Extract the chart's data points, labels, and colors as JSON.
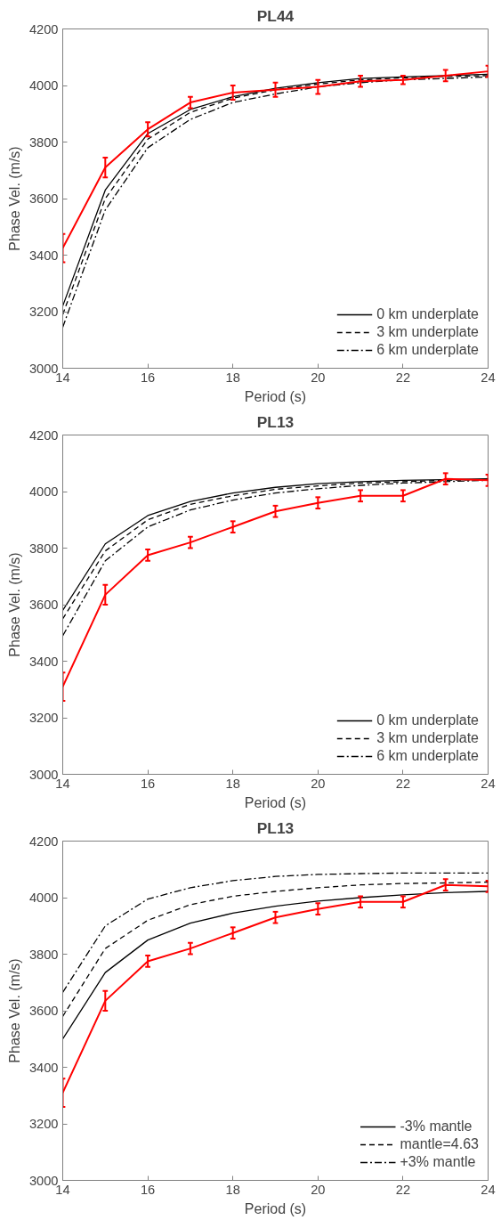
{
  "chart_data": [
    {
      "type": "line",
      "title": "PL44",
      "xlabel": "Period (s)",
      "ylabel": "Phase Vel. (m/s)",
      "x": [
        14,
        15,
        16,
        17,
        18,
        19,
        20,
        21,
        22,
        23,
        24
      ],
      "xlim": [
        14,
        24
      ],
      "xticks": [
        14,
        16,
        18,
        20,
        22,
        24
      ],
      "ylim": [
        3000,
        4200
      ],
      "yticks": [
        3000,
        3200,
        3400,
        3600,
        3800,
        4000,
        4200
      ],
      "grid": false,
      "legend": "bottom right",
      "series": [
        {
          "name": "0 km underplate",
          "color": "#000000",
          "line_style": "solid",
          "values": [
            3220,
            3630,
            3830,
            3915,
            3960,
            3990,
            4010,
            4025,
            4030,
            4035,
            4040
          ]
        },
        {
          "name": "3 km underplate",
          "color": "#000000",
          "line_style": "dashed",
          "values": [
            3190,
            3600,
            3810,
            3905,
            3955,
            3985,
            4005,
            4020,
            4027,
            4032,
            4035
          ]
        },
        {
          "name": "6 km underplate",
          "color": "#000000",
          "line_style": "dashdot",
          "values": [
            3145,
            3560,
            3780,
            3880,
            3940,
            3970,
            3995,
            4010,
            4020,
            4025,
            4030
          ]
        },
        {
          "color": "#ff0000",
          "line_style": "solid",
          "values": [
            3425,
            3710,
            3845,
            3940,
            3975,
            3985,
            3995,
            4015,
            4020,
            4035,
            4050
          ],
          "errors": [
            50,
            35,
            25,
            20,
            25,
            25,
            25,
            20,
            15,
            20,
            20
          ]
        }
      ]
    },
    {
      "type": "line",
      "title": "PL13",
      "xlabel": "Period (s)",
      "ylabel": "Phase Vel. (m/s)",
      "x": [
        14,
        15,
        16,
        17,
        18,
        19,
        20,
        21,
        22,
        23,
        24
      ],
      "xlim": [
        14,
        24
      ],
      "xticks": [
        14,
        16,
        18,
        20,
        22,
        24
      ],
      "ylim": [
        3000,
        4200
      ],
      "yticks": [
        3000,
        3200,
        3400,
        3600,
        3800,
        4000,
        4200
      ],
      "grid": false,
      "legend": "bottom right",
      "series": [
        {
          "name": "0 km underplate",
          "color": "#000000",
          "line_style": "solid",
          "values": [
            3580,
            3815,
            3915,
            3965,
            3995,
            4015,
            4028,
            4035,
            4040,
            4042,
            4045
          ]
        },
        {
          "name": "3 km underplate",
          "color": "#000000",
          "line_style": "dashed",
          "values": [
            3550,
            3790,
            3900,
            3955,
            3985,
            4008,
            4020,
            4030,
            4035,
            4040,
            4042
          ]
        },
        {
          "name": "6 km underplate",
          "color": "#000000",
          "line_style": "dashdot",
          "values": [
            3490,
            3755,
            3875,
            3935,
            3970,
            3995,
            4010,
            4022,
            4030,
            4035,
            4040
          ]
        },
        {
          "color": "#ff0000",
          "line_style": "solid",
          "values": [
            3310,
            3635,
            3775,
            3820,
            3875,
            3930,
            3960,
            3985,
            3985,
            4045,
            4040
          ],
          "errors": [
            50,
            35,
            20,
            20,
            20,
            20,
            20,
            20,
            20,
            20,
            20
          ]
        }
      ]
    },
    {
      "type": "line",
      "title": "PL13",
      "xlabel": "Period (s)",
      "ylabel": "Phase Vel. (m/s)",
      "x": [
        14,
        15,
        16,
        17,
        18,
        19,
        20,
        21,
        22,
        23,
        24
      ],
      "xlim": [
        14,
        24
      ],
      "xticks": [
        14,
        16,
        18,
        20,
        22,
        24
      ],
      "ylim": [
        3000,
        4200
      ],
      "yticks": [
        3000,
        3200,
        3400,
        3600,
        3800,
        4000,
        4200
      ],
      "grid": false,
      "legend": "bottom right",
      "series": [
        {
          "name": "-3% mantle",
          "color": "#000000",
          "line_style": "solid",
          "values": [
            3500,
            3735,
            3850,
            3910,
            3945,
            3970,
            3988,
            4000,
            4010,
            4018,
            4022
          ]
        },
        {
          "name": "mantle=4.63",
          "color": "#000000",
          "line_style": "dashed",
          "values": [
            3580,
            3820,
            3920,
            3975,
            4005,
            4022,
            4035,
            4045,
            4050,
            4052,
            4055
          ]
        },
        {
          "name": "+3% mantle",
          "color": "#000000",
          "line_style": "dashdot",
          "values": [
            3665,
            3900,
            3995,
            4035,
            4060,
            4075,
            4082,
            4085,
            4087,
            4087,
            4087
          ]
        },
        {
          "color": "#ff0000",
          "line_style": "solid",
          "values": [
            3310,
            3635,
            3775,
            3820,
            3875,
            3930,
            3960,
            3985,
            3985,
            4045,
            4040
          ],
          "errors": [
            50,
            35,
            20,
            20,
            20,
            20,
            20,
            20,
            20,
            20,
            20
          ]
        }
      ]
    }
  ]
}
